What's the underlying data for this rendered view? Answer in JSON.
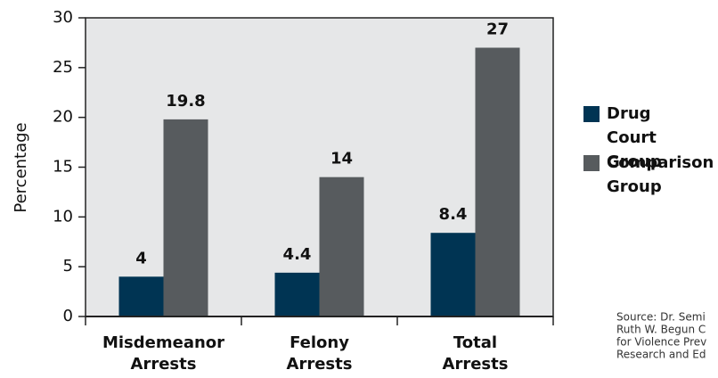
{
  "chart_data": {
    "type": "bar",
    "y_label": "Percentage",
    "categories": [
      "Misdemeanor Arrests",
      "Felony Arrests",
      "Total Arrests"
    ],
    "series": [
      {
        "name": "Drug Court Group",
        "color": "#003453",
        "values": [
          4,
          4.4,
          8.4
        ]
      },
      {
        "name": "Comparison Group",
        "color": "#575b5e",
        "values": [
          19.8,
          14,
          27
        ]
      }
    ],
    "ylim": [
      0,
      30
    ],
    "yticks": [
      0,
      5,
      10,
      15,
      20,
      25,
      30
    ],
    "legend": "right",
    "source": [
      "Source: Dr. Semi",
      "Ruth W. Begun C",
      "for Violence Prev",
      "Research and Ed"
    ]
  }
}
